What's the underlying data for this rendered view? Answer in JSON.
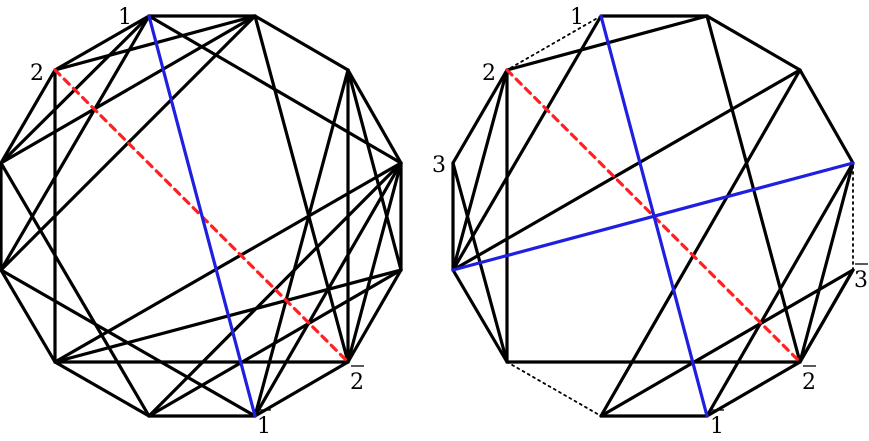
{
  "colors": {
    "edge": "#000000",
    "highlight": "#1f1fe0",
    "diagonal": "#ff2020",
    "dotted": "#000000",
    "background": "#ffffff"
  },
  "left_diagram": {
    "labels": {
      "v1": "1",
      "v2": "2",
      "v2bar": "2",
      "v1bar": "1"
    },
    "solid_edges": [
      [
        "A",
        "B"
      ],
      [
        "B",
        "C"
      ],
      [
        "C",
        "D"
      ],
      [
        "D",
        "E"
      ],
      [
        "E",
        "F"
      ],
      [
        "F",
        "G"
      ],
      [
        "G",
        "H"
      ],
      [
        "H",
        "I"
      ],
      [
        "I",
        "J"
      ],
      [
        "J",
        "K"
      ],
      [
        "K",
        "L"
      ],
      [
        "L",
        "A"
      ],
      [
        "B",
        "L"
      ],
      [
        "L",
        "H"
      ],
      [
        "H",
        "E"
      ],
      [
        "E",
        "B"
      ],
      [
        "A",
        "C"
      ],
      [
        "A",
        "D"
      ],
      [
        "A",
        "J"
      ],
      [
        "L",
        "D"
      ],
      [
        "L",
        "C"
      ],
      [
        "K",
        "G"
      ],
      [
        "K",
        "H"
      ],
      [
        "K",
        "I"
      ],
      [
        "J",
        "F"
      ],
      [
        "J",
        "G"
      ],
      [
        "J",
        "H"
      ],
      [
        "J",
        "E"
      ],
      [
        "I",
        "E"
      ],
      [
        "I",
        "F"
      ],
      [
        "C",
        "F"
      ],
      [
        "G",
        "D"
      ]
    ],
    "highlight_edges": [
      [
        "A",
        "G"
      ]
    ],
    "diagonal_edges": [
      [
        "B",
        "H"
      ]
    ]
  },
  "right_diagram": {
    "labels": {
      "v1": "1",
      "v2": "2",
      "v3": "3",
      "v3bar": "3",
      "v2bar": "2",
      "v1bar": "1"
    },
    "solid_edges": [
      [
        "L",
        "A"
      ],
      [
        "B",
        "C"
      ],
      [
        "C",
        "D"
      ],
      [
        "D",
        "E"
      ],
      [
        "F",
        "G"
      ],
      [
        "G",
        "H"
      ],
      [
        "H",
        "I"
      ],
      [
        "J",
        "K"
      ],
      [
        "K",
        "L"
      ],
      [
        "B",
        "L"
      ],
      [
        "L",
        "H"
      ],
      [
        "H",
        "E"
      ],
      [
        "E",
        "B"
      ],
      [
        "A",
        "D"
      ],
      [
        "C",
        "E"
      ],
      [
        "K",
        "D"
      ],
      [
        "B",
        "D"
      ],
      [
        "K",
        "F"
      ],
      [
        "J",
        "H"
      ],
      [
        "I",
        "H"
      ],
      [
        "J",
        "G"
      ],
      [
        "I",
        "F"
      ]
    ],
    "dotted_edges": [
      [
        "A",
        "B"
      ],
      [
        "I",
        "J"
      ],
      [
        "E",
        "F"
      ]
    ],
    "highlight_edges": [
      [
        "A",
        "G"
      ],
      [
        "J",
        "D"
      ]
    ],
    "diagonal_edges": [
      [
        "B",
        "H"
      ]
    ]
  }
}
